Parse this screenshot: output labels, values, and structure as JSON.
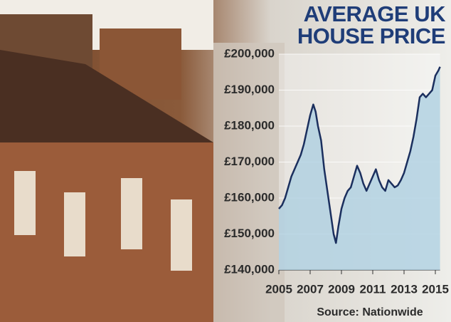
{
  "chart_data": {
    "type": "line",
    "title": "AVERAGE UK HOUSE PRICE",
    "source": "Source: Nationwide",
    "x": [
      2005.0,
      2005.2,
      2005.4,
      2005.6,
      2005.8,
      2006.0,
      2006.2,
      2006.4,
      2006.6,
      2006.8,
      2007.0,
      2007.2,
      2007.35,
      2007.5,
      2007.7,
      2007.9,
      2008.1,
      2008.3,
      2008.5,
      2008.65,
      2008.8,
      2009.0,
      2009.2,
      2009.4,
      2009.6,
      2009.8,
      2010.0,
      2010.2,
      2010.4,
      2010.6,
      2010.8,
      2011.0,
      2011.2,
      2011.4,
      2011.6,
      2011.8,
      2012.0,
      2012.2,
      2012.4,
      2012.6,
      2012.8,
      2013.0,
      2013.2,
      2013.4,
      2013.6,
      2013.8,
      2014.0,
      2014.2,
      2014.4,
      2014.6,
      2014.8,
      2015.0,
      2015.2,
      2015.3
    ],
    "series": [
      {
        "color": "#1b2f5e",
        "values": [
          157000,
          158000,
          160000,
          163000,
          166000,
          168000,
          170000,
          172000,
          175000,
          179000,
          183000,
          186000,
          184000,
          180000,
          176000,
          168000,
          162000,
          156000,
          150000,
          147500,
          152000,
          157000,
          160000,
          162000,
          163000,
          166000,
          169000,
          167000,
          164000,
          162000,
          164000,
          166000,
          168000,
          165000,
          163000,
          162000,
          165000,
          164000,
          163000,
          163500,
          165000,
          167000,
          170000,
          173000,
          177000,
          182000,
          188000,
          189000,
          188000,
          189000,
          190000,
          194000,
          195500,
          196500
        ]
      }
    ],
    "xlim": [
      2005,
      2015.3
    ],
    "xticks": [
      2005,
      2007,
      2009,
      2011,
      2013,
      2015
    ],
    "ylim": [
      140000,
      200000
    ],
    "yticks": [
      {
        "value": 140000,
        "label": "£140,000"
      },
      {
        "value": 150000,
        "label": "£150,000"
      },
      {
        "value": 160000,
        "label": "£160,000"
      },
      {
        "value": 170000,
        "label": "£170,000"
      },
      {
        "value": 180000,
        "label": "£180,000"
      },
      {
        "value": 190000,
        "label": "£190,000"
      },
      {
        "value": 200000,
        "label": "£200,000"
      }
    ],
    "area_color": "#a9cde0",
    "grid": true
  }
}
